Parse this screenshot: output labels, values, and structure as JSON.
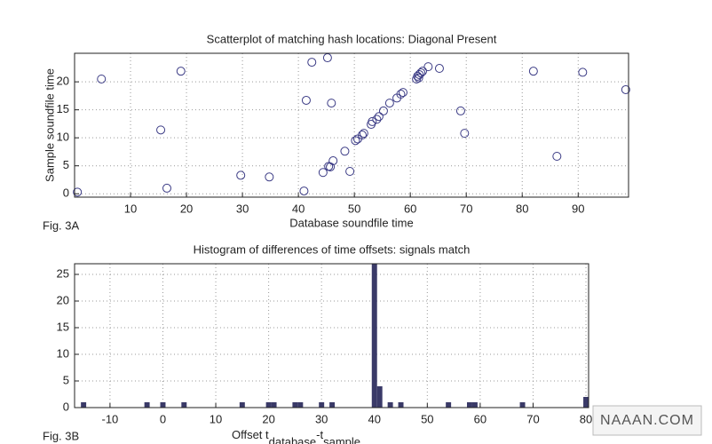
{
  "watermark": "NAAAN.COM",
  "chart_data": [
    {
      "type": "scatter",
      "title": "Scatterplot of matching hash locations:  Diagonal Present",
      "xlabel": "Database soundfile time",
      "ylabel": "Sample soundfile time",
      "annotations": [
        "Fig. 3A"
      ],
      "color": "#3b3b85",
      "grid": true,
      "x": [
        0.5,
        4.8,
        15.4,
        16.5,
        19,
        29.7,
        34.8,
        41,
        41.4,
        42.4,
        45.2,
        45.9,
        44.4,
        45.4,
        45.7,
        46.2,
        48.3,
        49.2,
        50.2,
        50.6,
        51.4,
        51.7,
        53,
        53.2,
        54,
        54.4,
        55.2,
        56.3,
        57.6,
        58.3,
        58.7,
        61.3,
        61.6,
        61.9,
        62.2,
        61.1,
        61.5,
        63.2,
        65.2,
        69,
        69.7,
        82,
        86.2,
        90.8,
        98.5
      ],
      "values": [
        0.3,
        20.5,
        11.4,
        1,
        21.9,
        3.3,
        3,
        0.5,
        16.7,
        23.5,
        24.3,
        16.2,
        3.8,
        4.9,
        4.8,
        5.9,
        7.6,
        4,
        9.5,
        9.8,
        10.5,
        10.8,
        12.4,
        12.9,
        13.3,
        13.8,
        14.8,
        16.2,
        17.1,
        17.8,
        18.1,
        21,
        21.3,
        21.6,
        21.9,
        20.5,
        20.7,
        22.7,
        22.4,
        14.8,
        10.8,
        21.9,
        6.7,
        21.7,
        18.6
      ],
      "xlim": [
        0,
        99
      ],
      "ylim": [
        -0.6,
        25.1
      ],
      "xticks": [
        10,
        20,
        30,
        40,
        50,
        60,
        70,
        80,
        90
      ],
      "yticks": [
        0,
        5,
        10,
        15,
        20
      ]
    },
    {
      "type": "bar",
      "title": "Histogram of differences of time offsets: signals match",
      "xlabel": [
        "Offset t",
        "database",
        "-t",
        "sample"
      ],
      "annotations": [
        "Fig. 3B"
      ],
      "color": "#3a3a68",
      "grid": true,
      "x": [
        -15,
        -3,
        0,
        4,
        15,
        20,
        21,
        25,
        26,
        30,
        32,
        40,
        41,
        43,
        45,
        54,
        58,
        59,
        68,
        80
      ],
      "values": [
        1,
        1,
        1,
        1,
        1,
        1,
        1,
        1,
        1,
        1,
        1,
        27,
        4,
        1,
        1,
        1,
        1,
        1,
        1,
        2
      ],
      "xlim": [
        -16.7,
        80.5
      ],
      "ylim": [
        0,
        27
      ],
      "xticks": [
        -10,
        0,
        10,
        20,
        30,
        40,
        50,
        60,
        70,
        80
      ],
      "yticks": [
        0,
        5,
        10,
        15,
        20,
        25
      ]
    }
  ]
}
